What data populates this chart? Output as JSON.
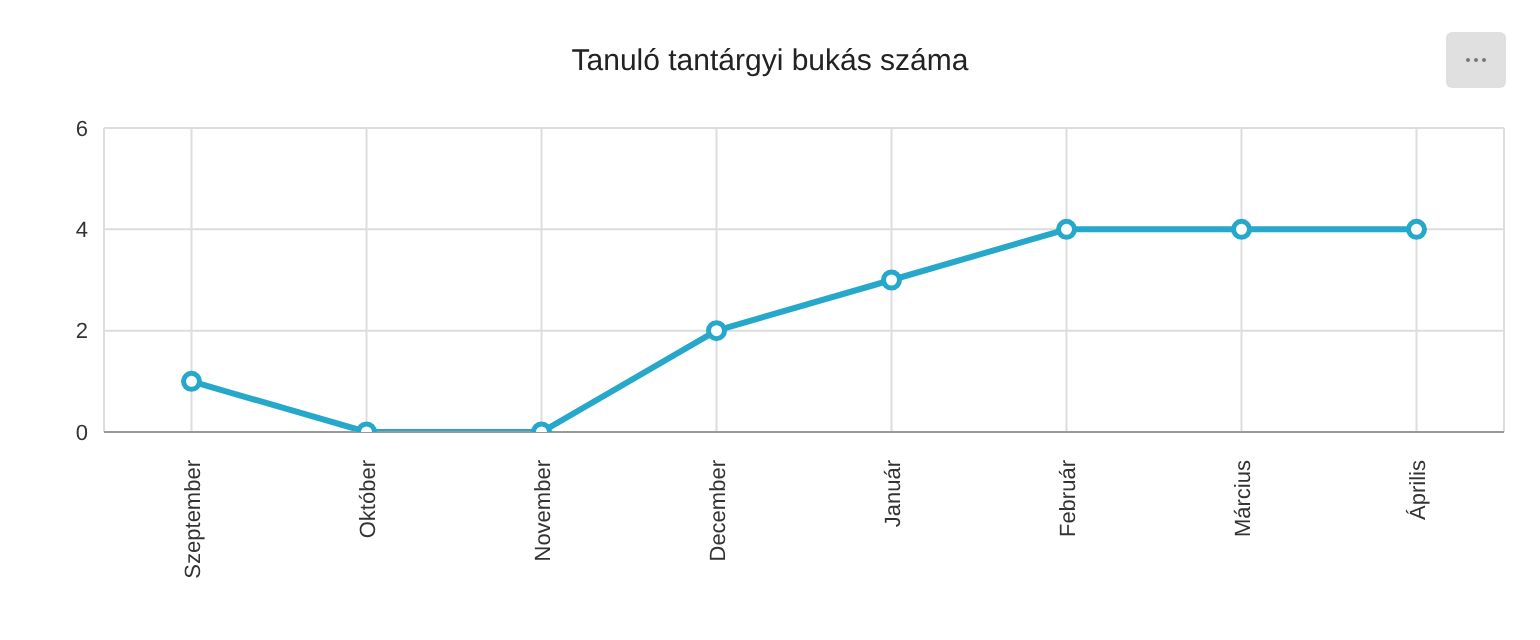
{
  "chart_data": {
    "type": "line",
    "title": "Tanuló tantárgyi bukás száma",
    "categories": [
      "Szeptember",
      "Október",
      "November",
      "December",
      "Január",
      "Február",
      "Március",
      "Április"
    ],
    "series": [
      {
        "color": "#26a8cb",
        "values": [
          1,
          0,
          0,
          2,
          3,
          4,
          4,
          4
        ]
      }
    ],
    "ylim": [
      0,
      6
    ],
    "yticks": [
      0,
      2,
      4,
      6
    ],
    "grid": true,
    "legend": false,
    "marker": "circle",
    "line_style": "solid"
  }
}
